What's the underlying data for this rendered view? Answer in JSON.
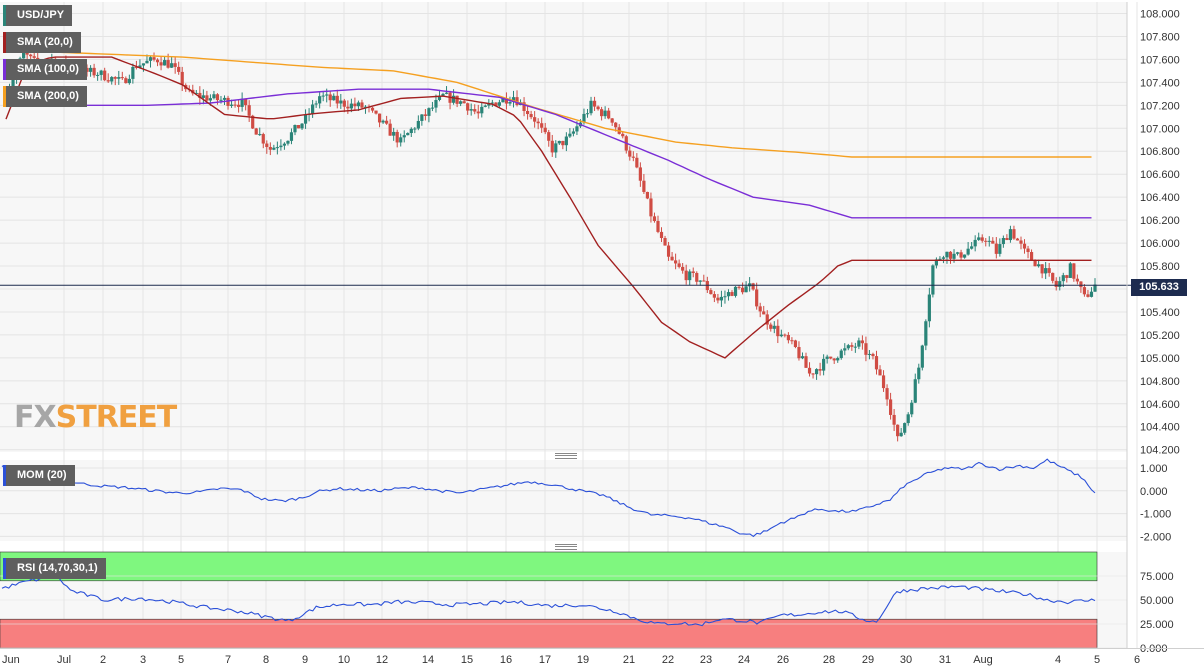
{
  "chart_data": [
    {
      "type": "candlestick",
      "symbol": "USD/JPY",
      "last_price": "105.633",
      "ylim": [
        104.18,
        108.1
      ],
      "y_ticks": [
        "108.000",
        "107.800",
        "107.600",
        "107.400",
        "107.200",
        "107.000",
        "106.800",
        "106.600",
        "106.400",
        "106.200",
        "106.000",
        "105.800",
        "105.600",
        "105.400",
        "105.200",
        "105.000",
        "104.800",
        "104.600",
        "104.400",
        "104.200"
      ],
      "x_ticks": [
        "Jul",
        "2",
        "3",
        "5",
        "7",
        "8",
        "9",
        "10",
        "12",
        "14",
        "15",
        "16",
        "17",
        "19",
        "21",
        "22",
        "23",
        "24",
        "26",
        "28",
        "29",
        "30",
        "31",
        "Aug",
        "4",
        "5",
        "6"
      ],
      "x_tick_first": "Jun",
      "indicators": [
        "USD/JPY",
        "SMA (20,0)",
        "SMA (100,0)",
        "SMA (200,0)"
      ],
      "colors": {
        "up": "#2a8478",
        "down": "#d04c44",
        "sma20": "#a22020",
        "sma100": "#7a2ed6",
        "sma200": "#f5a020",
        "last_line": "#1d2b4f"
      },
      "sma20_anchors": [
        [
          0,
          107.08
        ],
        [
          6,
          107.55
        ],
        [
          13,
          107.62
        ],
        [
          30,
          107.62
        ],
        [
          42,
          107.48
        ],
        [
          50,
          107.38
        ],
        [
          62,
          107.12
        ],
        [
          75,
          107.08
        ],
        [
          88,
          107.13
        ],
        [
          100,
          107.16
        ],
        [
          112,
          107.26
        ],
        [
          124,
          107.28
        ],
        [
          138,
          107.21
        ],
        [
          145,
          107.1
        ],
        [
          152,
          106.8
        ],
        [
          160,
          106.4
        ],
        [
          168,
          105.98
        ],
        [
          178,
          105.62
        ],
        [
          186,
          105.31
        ],
        [
          194,
          105.14
        ],
        [
          204,
          105
        ],
        [
          213,
          105.24
        ],
        [
          222,
          105.46
        ],
        [
          231,
          105.66
        ],
        [
          236,
          105.8
        ],
        [
          240,
          105.85
        ]
      ],
      "sma100_anchors": [
        [
          0,
          107.32
        ],
        [
          20,
          107.2
        ],
        [
          40,
          107.2
        ],
        [
          58,
          107.22
        ],
        [
          80,
          107.3
        ],
        [
          100,
          107.34
        ],
        [
          120,
          107.34
        ],
        [
          140,
          107.27
        ],
        [
          156,
          107.12
        ],
        [
          172,
          106.92
        ],
        [
          188,
          106.72
        ],
        [
          200,
          106.55
        ],
        [
          212,
          106.4
        ],
        [
          228,
          106.33
        ],
        [
          240,
          106.22
        ]
      ],
      "sma200_anchors": [
        [
          0,
          107.68
        ],
        [
          50,
          107.62
        ],
        [
          90,
          107.53
        ],
        [
          110,
          107.5
        ],
        [
          128,
          107.4
        ],
        [
          150,
          107.18
        ],
        [
          170,
          107
        ],
        [
          190,
          106.88
        ],
        [
          206,
          106.83
        ],
        [
          225,
          106.79
        ],
        [
          240,
          106.75
        ]
      ],
      "close_anchors": [
        [
          0,
          107.3
        ],
        [
          5,
          107.65
        ],
        [
          9,
          107.55
        ],
        [
          13,
          107.6
        ],
        [
          20,
          107.5
        ],
        [
          26,
          107.48
        ],
        [
          33,
          107.4
        ],
        [
          37,
          107.55
        ],
        [
          43,
          107.6
        ],
        [
          47,
          107.55
        ],
        [
          52,
          107.3
        ],
        [
          60,
          107.25
        ],
        [
          67,
          107.22
        ],
        [
          71,
          106.98
        ],
        [
          75,
          106.82
        ],
        [
          80,
          106.92
        ],
        [
          85,
          107.08
        ],
        [
          89,
          107.28
        ],
        [
          95,
          107.22
        ],
        [
          102,
          107.18
        ],
        [
          108,
          107
        ],
        [
          112,
          106.88
        ],
        [
          116,
          107.02
        ],
        [
          121,
          107.18
        ],
        [
          124,
          107.28
        ],
        [
          130,
          107.22
        ],
        [
          134,
          107.12
        ],
        [
          138,
          107.22
        ],
        [
          144,
          107.28
        ],
        [
          150,
          107.08
        ],
        [
          155,
          106.82
        ],
        [
          160,
          106.92
        ],
        [
          166,
          107.2
        ],
        [
          172,
          107.08
        ],
        [
          178,
          106.72
        ],
        [
          183,
          106.25
        ],
        [
          188,
          105.86
        ],
        [
          193,
          105.72
        ],
        [
          197,
          105.68
        ],
        [
          202,
          105.5
        ],
        [
          206,
          105.58
        ],
        [
          211,
          105.62
        ],
        [
          215,
          105.36
        ],
        [
          219,
          105.22
        ],
        [
          224,
          105.08
        ],
        [
          228,
          104.86
        ],
        [
          233,
          104.98
        ],
        [
          237,
          105.05
        ],
        [
          242,
          105.12
        ],
        [
          246,
          104.98
        ],
        [
          250,
          104.68
        ],
        [
          253,
          104.28
        ],
        [
          256,
          104.52
        ],
        [
          259,
          104.92
        ],
        [
          263,
          105.8
        ],
        [
          266,
          105.92
        ],
        [
          270,
          105.88
        ],
        [
          273,
          105.95
        ],
        [
          278,
          106.05
        ],
        [
          281,
          105.92
        ],
        [
          285,
          106.12
        ],
        [
          289,
          105.92
        ],
        [
          294,
          105.78
        ],
        [
          298,
          105.62
        ],
        [
          302,
          105.78
        ],
        [
          306,
          105.52
        ],
        [
          309,
          105.633
        ]
      ]
    },
    {
      "type": "line",
      "indicator": "MOM (20)",
      "ylim": [
        -2.2,
        1.35
      ],
      "y_ticks": [
        "1.000",
        "0.000",
        "-1.000",
        "-2.000"
      ],
      "anchors": [
        [
          0,
          1.05
        ],
        [
          4,
          0.8
        ],
        [
          8,
          0.7
        ],
        [
          12,
          0.55
        ],
        [
          16,
          0.45
        ],
        [
          20,
          0.4
        ],
        [
          24,
          0.3
        ],
        [
          30,
          0.2
        ],
        [
          36,
          0.15
        ],
        [
          42,
          0.05
        ],
        [
          48,
          -0.05
        ],
        [
          52,
          -0.1
        ],
        [
          58,
          -0.05
        ],
        [
          64,
          0.1
        ],
        [
          70,
          0.05
        ],
        [
          76,
          -0.35
        ],
        [
          82,
          -0.45
        ],
        [
          88,
          -0.3
        ],
        [
          92,
          -0.05
        ],
        [
          98,
          0.1
        ],
        [
          104,
          0.05
        ],
        [
          110,
          0.0
        ],
        [
          116,
          0.1
        ],
        [
          122,
          0.15
        ],
        [
          128,
          0.0
        ],
        [
          134,
          -0.1
        ],
        [
          140,
          0.05
        ],
        [
          148,
          0.25
        ],
        [
          154,
          0.4
        ],
        [
          160,
          0.3
        ],
        [
          168,
          0.05
        ],
        [
          176,
          -0.2
        ],
        [
          184,
          -0.75
        ],
        [
          190,
          -1.05
        ],
        [
          196,
          -1.1
        ],
        [
          202,
          -1.2
        ],
        [
          208,
          -1.45
        ],
        [
          212,
          -1.6
        ],
        [
          216,
          -1.85
        ],
        [
          220,
          -1.95
        ],
        [
          224,
          -1.75
        ],
        [
          228,
          -1.4
        ],
        [
          232,
          -1.2
        ],
        [
          236,
          -0.9
        ],
        [
          240,
          -0.8
        ],
        [
          244,
          -0.9
        ],
        [
          250,
          -0.9
        ],
        [
          256,
          -0.6
        ],
        [
          260,
          -0.4
        ],
        [
          264,
          0.2
        ],
        [
          270,
          0.7
        ],
        [
          276,
          1.0
        ],
        [
          282,
          0.95
        ],
        [
          286,
          1.2
        ],
        [
          292,
          0.95
        ],
        [
          298,
          1.1
        ],
        [
          302,
          1.0
        ],
        [
          306,
          1.35
        ],
        [
          312,
          0.9
        ],
        [
          316,
          0.6
        ],
        [
          320,
          -0.1
        ]
      ]
    },
    {
      "type": "line",
      "indicator": "RSI (14,70,30,1)",
      "ylim": [
        0,
        100
      ],
      "overbought": 70,
      "oversold": 30,
      "y_ticks": [
        "75.000",
        "50.000",
        "25.000",
        "0.000"
      ],
      "anchors": [
        [
          0,
          62
        ],
        [
          8,
          70
        ],
        [
          16,
          75
        ],
        [
          20,
          60
        ],
        [
          30,
          50
        ],
        [
          40,
          52
        ],
        [
          50,
          48
        ],
        [
          60,
          42
        ],
        [
          70,
          38
        ],
        [
          78,
          32
        ],
        [
          84,
          28
        ],
        [
          92,
          42
        ],
        [
          100,
          46
        ],
        [
          108,
          45
        ],
        [
          116,
          48
        ],
        [
          124,
          47
        ],
        [
          132,
          45
        ],
        [
          140,
          46
        ],
        [
          150,
          48
        ],
        [
          160,
          44
        ],
        [
          170,
          45
        ],
        [
          180,
          38
        ],
        [
          186,
          30
        ],
        [
          192,
          25
        ],
        [
          198,
          26
        ],
        [
          204,
          24
        ],
        [
          210,
          30
        ],
        [
          216,
          29
        ],
        [
          222,
          26
        ],
        [
          228,
          34
        ],
        [
          234,
          35
        ],
        [
          240,
          38
        ],
        [
          246,
          38
        ],
        [
          252,
          30
        ],
        [
          256,
          27
        ],
        [
          262,
          59
        ],
        [
          270,
          62
        ],
        [
          280,
          64
        ],
        [
          290,
          60
        ],
        [
          300,
          56
        ],
        [
          306,
          50
        ],
        [
          312,
          48
        ],
        [
          320,
          50
        ]
      ]
    }
  ],
  "indicator_panels": {
    "mom_label": "MOM (20)",
    "rsi_label": "RSI (14,70,30,1)"
  },
  "watermark": {
    "fx": "FX",
    "street": "STREET"
  }
}
